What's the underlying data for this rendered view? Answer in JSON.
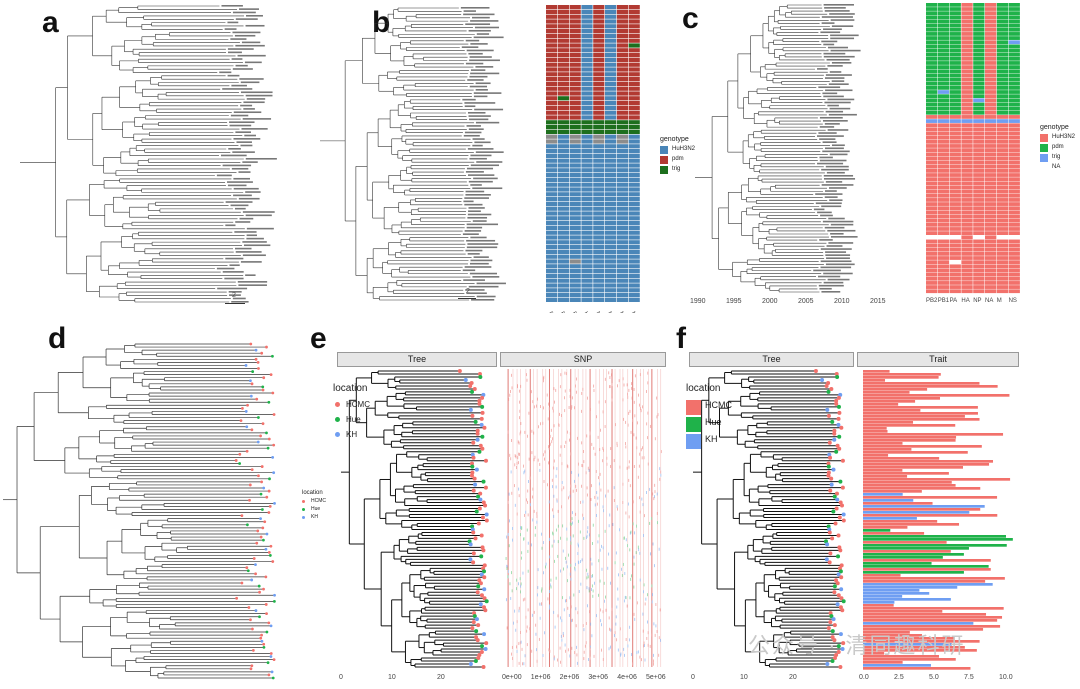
{
  "panels": {
    "a": {
      "label": "a",
      "scale": "2"
    },
    "b": {
      "label": "b",
      "scale": "2",
      "legend_title": "genotype",
      "legend": [
        {
          "name": "HuH3N2",
          "color": "#4a86b8"
        },
        {
          "name": "pdm",
          "color": "#b23a32"
        },
        {
          "name": "trig",
          "color": "#1d6f1d"
        }
      ],
      "columns": [
        "PB2",
        "PB1",
        "PA",
        "HA",
        "NP",
        "NA",
        "M",
        "NS"
      ]
    },
    "c": {
      "label": "c",
      "legend_title": "genotype",
      "legend": [
        {
          "name": "HuH3N2",
          "color": "#f2716b"
        },
        {
          "name": "pdm",
          "color": "#1fb24a"
        },
        {
          "name": "trig",
          "color": "#6f9ef2"
        },
        {
          "name": "NA",
          "color": "#bdbdbd"
        }
      ],
      "axis": [
        "1990",
        "1995",
        "2000",
        "2005",
        "2010",
        "2015"
      ],
      "columns": [
        "PB2",
        "PB1",
        "PA",
        "HA",
        "NP",
        "NA",
        "M",
        "NS"
      ]
    },
    "d": {
      "label": "d",
      "legend_title": "location",
      "legend": [
        {
          "name": "HCMC",
          "color": "#f2716b"
        },
        {
          "name": "Hue",
          "color": "#1fb24a"
        },
        {
          "name": "KH",
          "color": "#6f9ef2"
        }
      ]
    },
    "e": {
      "label": "e",
      "facets": [
        "Tree",
        "SNP"
      ],
      "legend_title": "location",
      "legend": [
        {
          "name": "HCMC",
          "color": "#f2716b"
        },
        {
          "name": "Hue",
          "color": "#1fb24a"
        },
        {
          "name": "KH",
          "color": "#6f9ef2"
        }
      ],
      "tree_ticks": [
        "0",
        "10",
        "20"
      ],
      "snp_ticks": [
        "0e+00",
        "1e+06",
        "2e+06",
        "3e+06",
        "4e+06",
        "5e+06"
      ]
    },
    "f": {
      "label": "f",
      "facets": [
        "Tree",
        "Trait"
      ],
      "legend_title": "location",
      "legend": [
        {
          "name": "HCMC",
          "color": "#f2716b"
        },
        {
          "name": "Hue",
          "color": "#1fb24a"
        },
        {
          "name": "KH",
          "color": "#6f9ef2"
        }
      ],
      "tree_ticks": [
        "0",
        "10",
        "20"
      ],
      "trait_ticks": [
        "0.0",
        "2.5",
        "5.0",
        "7.5",
        "10.0"
      ]
    }
  },
  "watermark": "公众号 · 清同趣科研"
}
